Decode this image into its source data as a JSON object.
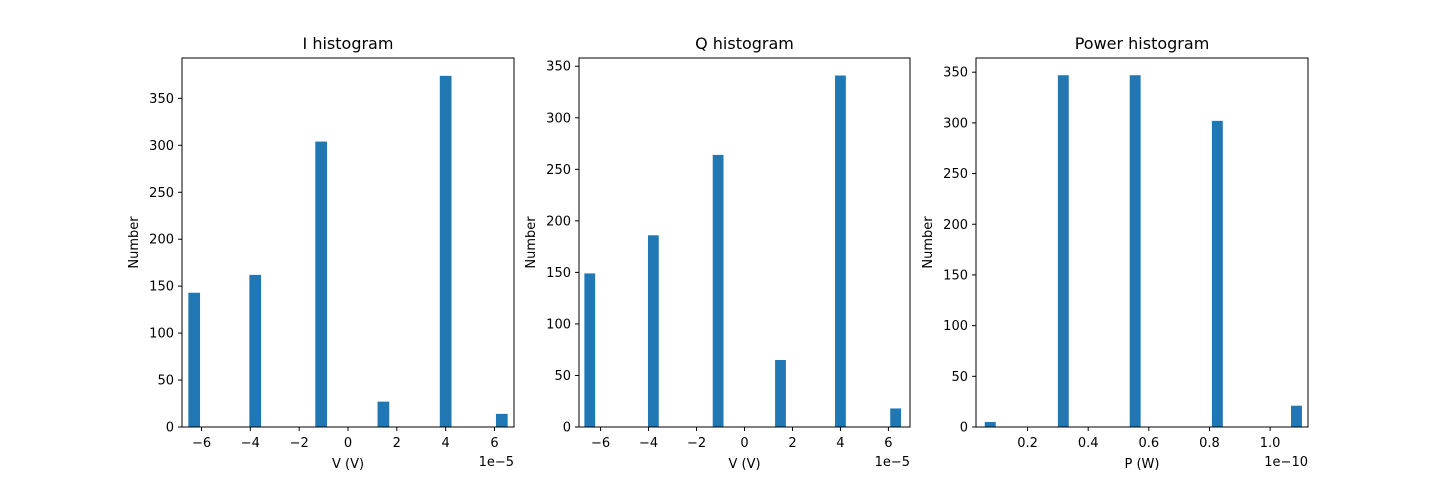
{
  "colors": {
    "bar": "#1f77b4"
  },
  "chart_data": [
    {
      "type": "bar",
      "title": "I histogram",
      "xlabel": "V (V)",
      "ylabel": "Number",
      "x_offset_label": "1e−5",
      "xlim": [
        -6.8,
        6.8
      ],
      "ylim": [
        0,
        393
      ],
      "bar_width": 0.48,
      "x": [
        -6.3,
        -3.8,
        -1.1,
        1.45,
        4.0,
        6.3
      ],
      "values": [
        143,
        162,
        304,
        27,
        374,
        14
      ],
      "xticks": [
        -6,
        -4,
        -2,
        0,
        2,
        4,
        6
      ],
      "xtick_labels": [
        "−6",
        "−4",
        "−2",
        "0",
        "2",
        "4",
        "6"
      ],
      "yticks": [
        0,
        50,
        100,
        150,
        200,
        250,
        300,
        350
      ],
      "ytick_labels": [
        "0",
        "50",
        "100",
        "150",
        "200",
        "250",
        "300",
        "350"
      ]
    },
    {
      "type": "bar",
      "title": "Q histogram",
      "xlabel": "V (V)",
      "ylabel": "Number",
      "x_offset_label": "1e−5",
      "xlim": [
        -6.9,
        6.9
      ],
      "ylim": [
        0,
        358
      ],
      "bar_width": 0.45,
      "x": [
        -6.45,
        -3.8,
        -1.1,
        1.5,
        4.0,
        6.3
      ],
      "values": [
        149,
        186,
        264,
        65,
        341,
        18
      ],
      "xticks": [
        -6,
        -4,
        -2,
        0,
        2,
        4,
        6
      ],
      "xtick_labels": [
        "−6",
        "−4",
        "−2",
        "0",
        "2",
        "4",
        "6"
      ],
      "yticks": [
        0,
        50,
        100,
        150,
        200,
        250,
        300,
        350
      ],
      "ytick_labels": [
        "0",
        "50",
        "100",
        "150",
        "200",
        "250",
        "300",
        "350"
      ]
    },
    {
      "type": "bar",
      "title": "Power histogram",
      "xlabel": "P (W)",
      "ylabel": "Number",
      "x_offset_label": "1e−10",
      "xlim": [
        0.03,
        1.125
      ],
      "ylim": [
        0,
        364
      ],
      "bar_width": 0.036,
      "x": [
        0.077,
        0.318,
        0.555,
        0.826,
        1.087
      ],
      "values": [
        5,
        347,
        347,
        302,
        21
      ],
      "xticks": [
        0.2,
        0.4,
        0.6,
        0.8,
        1.0
      ],
      "xtick_labels": [
        "0.2",
        "0.4",
        "0.6",
        "0.8",
        "1.0"
      ],
      "yticks": [
        0,
        50,
        100,
        150,
        200,
        250,
        300,
        350
      ],
      "ytick_labels": [
        "0",
        "50",
        "100",
        "150",
        "200",
        "250",
        "300",
        "350"
      ]
    }
  ]
}
